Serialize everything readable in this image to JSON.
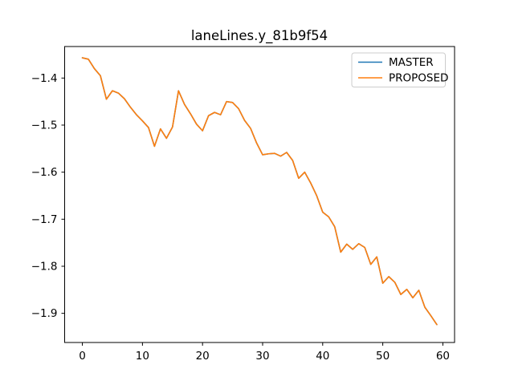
{
  "title": "laneLines.y_81b9f54",
  "colors": {
    "background": "#ffffff",
    "spine": "#000000",
    "text": "#000000",
    "legend_border": "#cccccc",
    "master": "#1f77b4",
    "proposed": "#ff7f0e"
  },
  "chart_data": {
    "type": "line",
    "title": "laneLines.y_81b9f54",
    "xlabel": "",
    "ylabel": "",
    "grid": false,
    "x": [
      0,
      1,
      2,
      3,
      4,
      5,
      6,
      7,
      8,
      9,
      10,
      11,
      12,
      13,
      14,
      15,
      16,
      17,
      18,
      19,
      20,
      21,
      22,
      23,
      24,
      25,
      26,
      27,
      28,
      29,
      30,
      31,
      32,
      33,
      34,
      35,
      36,
      37,
      38,
      39,
      40,
      41,
      42,
      43,
      44,
      45,
      46,
      47,
      48,
      49,
      50,
      51,
      52,
      53,
      54,
      55,
      56,
      57,
      58,
      59
    ],
    "series": [
      {
        "name": "MASTER",
        "color": "#1f77b4",
        "values": [
          -1.357,
          -1.36,
          -1.38,
          -1.395,
          -1.445,
          -1.427,
          -1.432,
          -1.444,
          -1.462,
          -1.478,
          -1.491,
          -1.505,
          -1.545,
          -1.508,
          -1.528,
          -1.504,
          -1.427,
          -1.456,
          -1.476,
          -1.498,
          -1.512,
          -1.48,
          -1.473,
          -1.478,
          -1.45,
          -1.452,
          -1.465,
          -1.49,
          -1.507,
          -1.538,
          -1.563,
          -1.561,
          -1.56,
          -1.566,
          -1.558,
          -1.575,
          -1.613,
          -1.6,
          -1.623,
          -1.65,
          -1.685,
          -1.695,
          -1.716,
          -1.77,
          -1.753,
          -1.764,
          -1.752,
          -1.76,
          -1.796,
          -1.78,
          -1.836,
          -1.822,
          -1.834,
          -1.86,
          -1.849,
          -1.867,
          -1.851,
          -1.887,
          -1.905,
          -1.924
        ]
      },
      {
        "name": "PROPOSED",
        "color": "#ff7f0e",
        "values": [
          -1.357,
          -1.36,
          -1.38,
          -1.395,
          -1.445,
          -1.427,
          -1.432,
          -1.444,
          -1.462,
          -1.478,
          -1.491,
          -1.505,
          -1.545,
          -1.508,
          -1.528,
          -1.504,
          -1.427,
          -1.456,
          -1.476,
          -1.498,
          -1.512,
          -1.48,
          -1.473,
          -1.478,
          -1.45,
          -1.452,
          -1.465,
          -1.49,
          -1.507,
          -1.538,
          -1.563,
          -1.561,
          -1.56,
          -1.566,
          -1.558,
          -1.575,
          -1.613,
          -1.6,
          -1.623,
          -1.65,
          -1.685,
          -1.695,
          -1.716,
          -1.77,
          -1.753,
          -1.764,
          -1.752,
          -1.76,
          -1.796,
          -1.78,
          -1.836,
          -1.822,
          -1.834,
          -1.86,
          -1.849,
          -1.867,
          -1.851,
          -1.887,
          -1.905,
          -1.924
        ]
      }
    ],
    "xlim": [
      -2.95,
      61.95
    ],
    "ylim": [
      -1.962,
      -1.333
    ],
    "xticks": {
      "values": [
        0,
        10,
        20,
        30,
        40,
        50,
        60
      ],
      "labels": [
        "0",
        "10",
        "20",
        "30",
        "40",
        "50",
        "60"
      ]
    },
    "yticks": {
      "values": [
        -1.4,
        -1.5,
        -1.6,
        -1.7,
        -1.8,
        -1.9
      ],
      "labels": [
        "−1.4",
        "−1.5",
        "−1.6",
        "−1.7",
        "−1.8",
        "−1.9"
      ]
    },
    "legend": {
      "position": "upper right",
      "entries": [
        "MASTER",
        "PROPOSED"
      ]
    }
  }
}
